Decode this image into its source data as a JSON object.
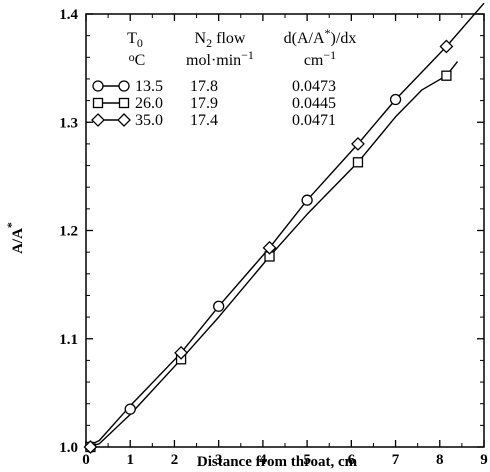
{
  "chart_data": {
    "type": "line",
    "xlabel": "Distance from throat, cm",
    "ylabel": "A/A*",
    "xlim": [
      0,
      9
    ],
    "ylim": [
      1.0,
      1.4
    ],
    "xticks": [
      "0",
      "1",
      "2",
      "3",
      "4",
      "5",
      "6",
      "7",
      "8",
      "9"
    ],
    "yticks": [
      "1.0",
      "1.1",
      "1.2",
      "1.3",
      "1.4"
    ],
    "legend": {
      "placement": "top-left",
      "headers": [
        [
          "T0",
          "N2 flow",
          "d(A/A*)/dx"
        ],
        [
          "°C",
          "mol·min−1",
          "cm−1"
        ]
      ],
      "rows": [
        {
          "marker": "circle",
          "t0": "13.5",
          "flow": "17.8",
          "slope": "0.0473"
        },
        {
          "marker": "square",
          "t0": "26.0",
          "flow": "17.9",
          "slope": "0.0445"
        },
        {
          "marker": "diamond",
          "t0": "35.0",
          "flow": "17.4",
          "slope": "0.0471"
        }
      ]
    },
    "series": [
      {
        "marker": "circle",
        "points": [
          [
            0.1,
            1.0
          ],
          [
            1.0,
            1.035
          ],
          [
            3.0,
            1.13
          ],
          [
            5.0,
            1.228
          ],
          [
            7.0,
            1.321
          ]
        ]
      },
      {
        "marker": "square",
        "points": [
          [
            0.1,
            1.0
          ],
          [
            2.15,
            1.081
          ],
          [
            4.15,
            1.176
          ],
          [
            6.15,
            1.263
          ],
          [
            8.15,
            1.343
          ]
        ],
        "curve": [
          [
            0.0,
            1.0
          ],
          [
            0.3,
            1.003
          ],
          [
            1.0,
            1.03
          ],
          [
            2.15,
            1.081
          ],
          [
            3.0,
            1.12
          ],
          [
            4.15,
            1.176
          ],
          [
            5.0,
            1.215
          ],
          [
            6.15,
            1.263
          ],
          [
            7.0,
            1.305
          ],
          [
            7.6,
            1.33
          ],
          [
            8.15,
            1.343
          ],
          [
            8.4,
            1.356
          ]
        ]
      },
      {
        "marker": "diamond",
        "points": [
          [
            0.1,
            1.0
          ],
          [
            2.15,
            1.087
          ],
          [
            4.15,
            1.184
          ],
          [
            6.15,
            1.28
          ],
          [
            8.15,
            1.37
          ]
        ],
        "curve": [
          [
            0.0,
            1.0
          ],
          [
            0.3,
            1.006
          ],
          [
            1.0,
            1.038
          ],
          [
            2.15,
            1.087
          ],
          [
            3.0,
            1.13
          ],
          [
            4.15,
            1.184
          ],
          [
            5.0,
            1.228
          ],
          [
            6.15,
            1.28
          ],
          [
            7.0,
            1.321
          ],
          [
            8.15,
            1.37
          ],
          [
            9.0,
            1.41
          ]
        ]
      }
    ]
  }
}
